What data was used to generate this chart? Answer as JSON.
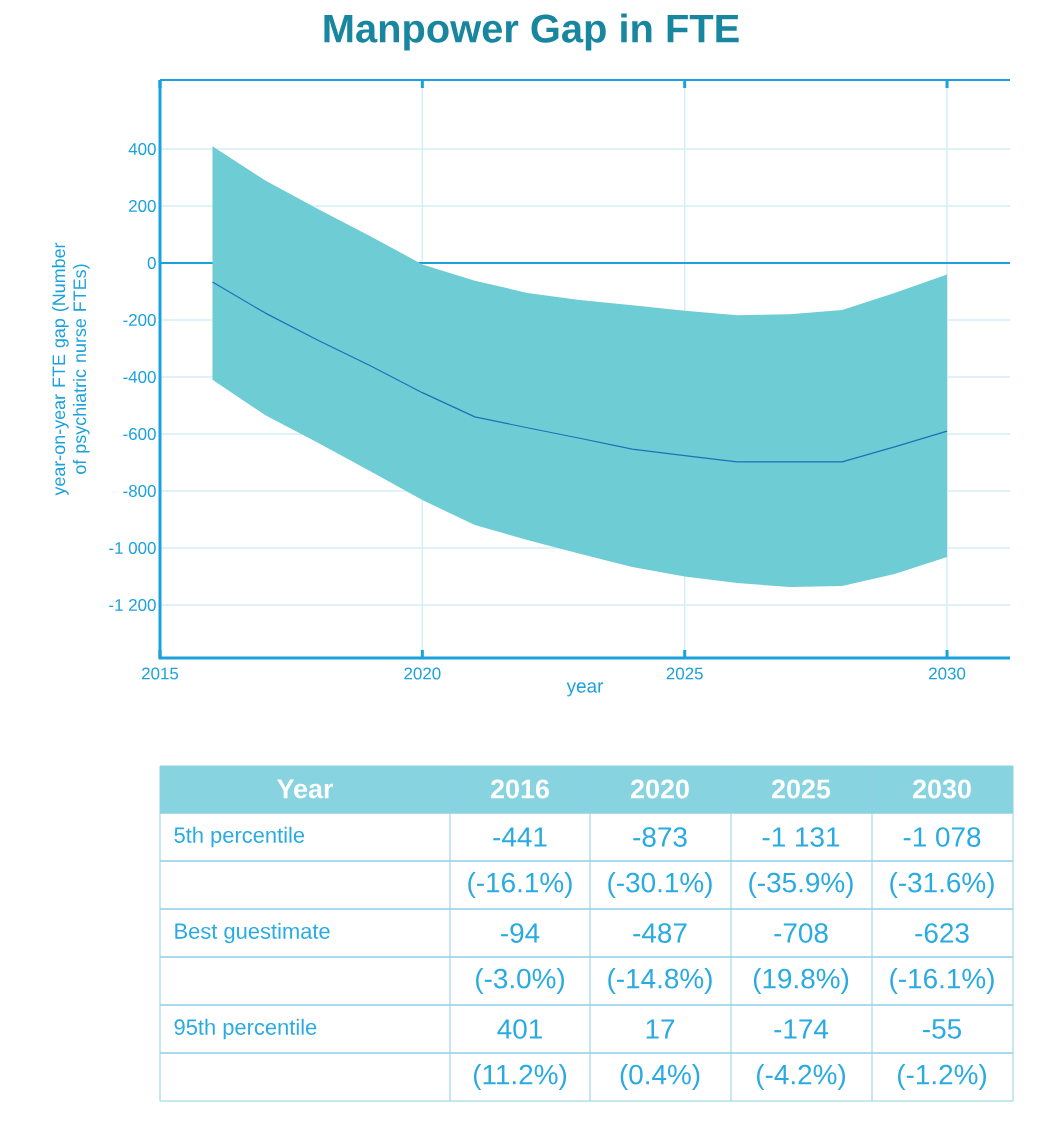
{
  "chart_data": {
    "type": "line",
    "title": "Manpower Gap in FTE",
    "xlabel": "year",
    "ylabel": "year-on-year FTE gap (Number of psychiatric nurse FTEs)",
    "xlim": [
      2015,
      2031.2
    ],
    "ylim": [
      -1386,
      642
    ],
    "xticks": [
      2015,
      2020,
      2025,
      2030
    ],
    "yticks": [
      400,
      200,
      0,
      -200,
      -400,
      -600,
      -800,
      {
        "value": -1000,
        "label": "-1 000"
      },
      {
        "value": -1200,
        "label": "-1 200"
      }
    ],
    "grid": true,
    "ref_lines": [
      {
        "axis": "y",
        "value": 0,
        "color": "#1ba1dc"
      }
    ],
    "series": [
      {
        "color": "#1f6fb8",
        "x": [
          2016,
          2017,
          2018,
          2019,
          2020,
          2021,
          2022,
          2023,
          2024,
          2025,
          2026,
          2027,
          2028,
          2029,
          2030
        ],
        "values": [
          -67,
          -175,
          -270,
          -360,
          -455,
          -540,
          -578,
          -615,
          -653,
          -676,
          -698,
          -698,
          -698,
          -645,
          -590
        ],
        "lower": [
          -410,
          -533,
          -630,
          -730,
          -832,
          -919,
          -972,
          -1020,
          -1067,
          -1100,
          -1123,
          -1137,
          -1133,
          -1091,
          -1032
        ],
        "upper": [
          410,
          290,
          190,
          95,
          -5,
          -62,
          -105,
          -130,
          -148,
          -168,
          -183,
          -180,
          -165,
          -105,
          -40
        ]
      }
    ],
    "annotations": [
      "Year",
      "2016",
      "2020",
      "2025",
      "2030",
      "5th percentile",
      "-441",
      "-873",
      "-1 131",
      "-1 078",
      "(-16.1%)",
      "(-30.1%)",
      "(-35.9%)",
      "(-31.6%)",
      "Best guestimate",
      "-94",
      "-487",
      "-708",
      "-623",
      "(-3.0%)",
      "(-14.8%)",
      "(19.8%)",
      "(-16.1%)",
      "95th percentile",
      "401",
      "17",
      "-174",
      "-55",
      "(11.2%)",
      "(0.4%)",
      "(-4.2%)",
      "(-1.2%)"
    ]
  }
}
